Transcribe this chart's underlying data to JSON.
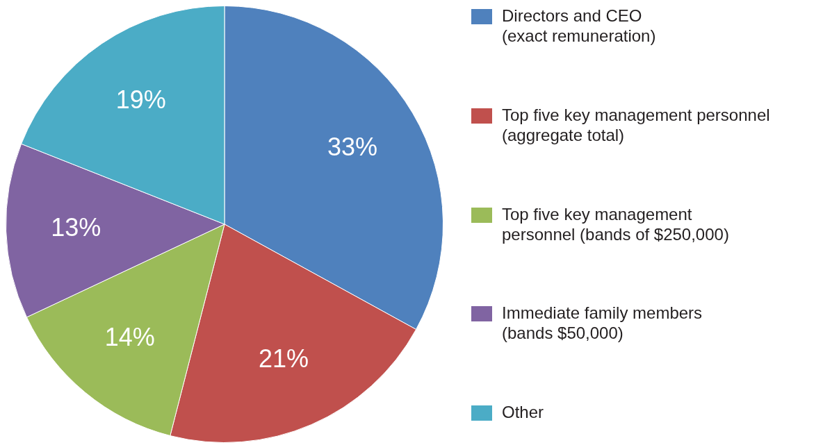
{
  "chart_data": {
    "type": "pie",
    "categories": [
      "Directors and CEO\n(exact remuneration)",
      "Top five key management personnel\n(aggregate total)",
      "Top five key management\npersonnel (bands of $250,000)",
      "Immediate family members\n(bands $50,000)",
      "Other"
    ],
    "values": [
      33,
      21,
      14,
      13,
      19
    ],
    "value_labels": [
      "33%",
      "21%",
      "14%",
      "13%",
      "19%"
    ],
    "colors": [
      "#4f81bd",
      "#c0504d",
      "#9bbb59",
      "#8064a2",
      "#4bacc6"
    ],
    "legend": "right"
  }
}
